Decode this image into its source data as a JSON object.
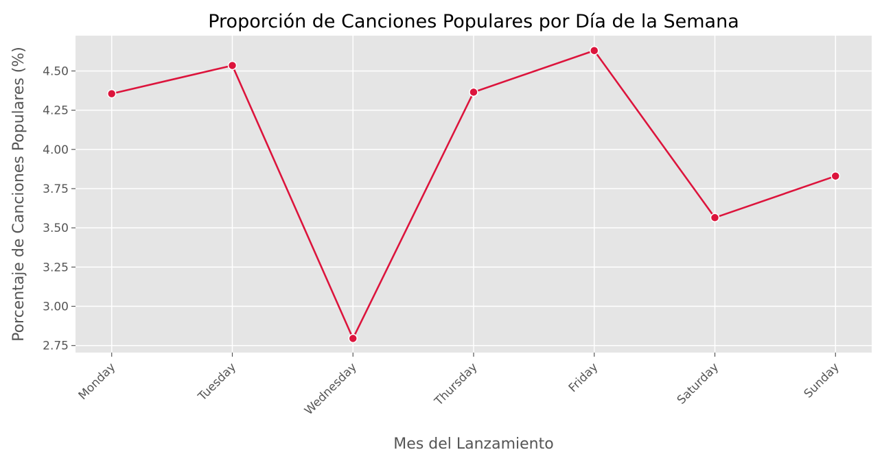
{
  "chart_data": {
    "type": "line",
    "title": "Proporción de Canciones Populares por Día de la Semana",
    "xlabel": "Mes del Lanzamiento",
    "ylabel": "Porcentaje de Canciones Populares (%)",
    "categories": [
      "Monday",
      "Tuesday",
      "Wednesday",
      "Thursday",
      "Friday",
      "Saturday",
      "Sunday"
    ],
    "series": [
      {
        "values": [
          4.355,
          4.535,
          2.795,
          4.365,
          4.63,
          3.565,
          3.83
        ],
        "color": "#dc143c"
      }
    ],
    "ylim": [
      2.705,
      4.725
    ],
    "yticks": [
      "2.75",
      "3.00",
      "3.25",
      "3.50",
      "3.75",
      "4.00",
      "4.25",
      "4.50"
    ],
    "grid": true,
    "legend": "none",
    "background_color": "#e5e5e5"
  }
}
